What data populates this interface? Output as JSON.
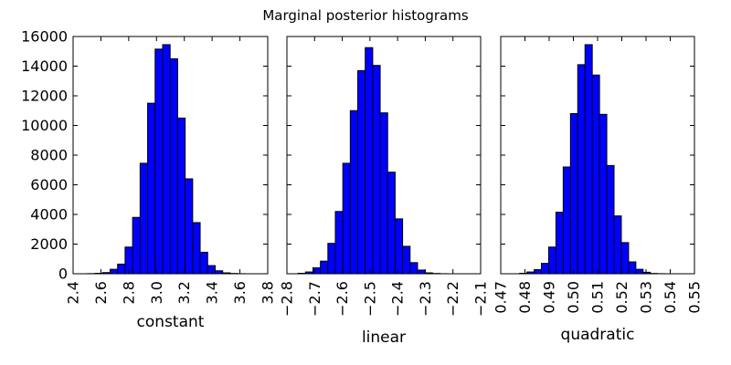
{
  "title": "Marginal posterior histograms",
  "colors": {
    "bar": "#0000ff",
    "edge": "#000000"
  },
  "chart_data": [
    {
      "type": "bar",
      "xlabel": "constant",
      "ylabel": "",
      "xlim": [
        2.4,
        3.8
      ],
      "ylim": [
        0,
        16000
      ],
      "xticks": [
        "2.4",
        "2.6",
        "2.8",
        "3.0",
        "3.2",
        "3.4",
        "3.6",
        "3.8"
      ],
      "yticks": [
        "0",
        "2000",
        "4000",
        "6000",
        "8000",
        "10000",
        "12000",
        "14000",
        "16000"
      ],
      "bin_edges": [
        2.504,
        2.558,
        2.612,
        2.666,
        2.72,
        2.774,
        2.828,
        2.882,
        2.936,
        2.99,
        3.044,
        3.098,
        3.152,
        3.206,
        3.26,
        3.314,
        3.368,
        3.422,
        3.476,
        3.53,
        3.584,
        3.638
      ],
      "values": [
        10,
        30,
        80,
        300,
        650,
        1800,
        3800,
        7450,
        11500,
        15150,
        15450,
        14500,
        10500,
        6400,
        3450,
        1450,
        550,
        200,
        60,
        20,
        5
      ],
      "grid": false
    },
    {
      "type": "bar",
      "xlabel": "linear",
      "ylabel": "",
      "xlim": [
        -2.8,
        -2.1
      ],
      "ylim": [
        0,
        16000
      ],
      "xticks": [
        "−2.8",
        "−2.7",
        "−2.6",
        "−2.5",
        "−2.4",
        "−2.3",
        "−2.2",
        "−2.1"
      ],
      "yticks": [],
      "bin_edges": [
        -2.76,
        -2.733,
        -2.706,
        -2.679,
        -2.652,
        -2.625,
        -2.598,
        -2.571,
        -2.544,
        -2.517,
        -2.49,
        -2.463,
        -2.436,
        -2.409,
        -2.382,
        -2.355,
        -2.328,
        -2.301,
        -2.274,
        -2.247,
        -2.22
      ],
      "values": [
        30,
        120,
        400,
        850,
        2050,
        4200,
        7450,
        11000,
        13700,
        15250,
        14050,
        10850,
        6850,
        3700,
        1850,
        750,
        250,
        60,
        20,
        5
      ],
      "grid": false
    },
    {
      "type": "bar",
      "xlabel": "quadratic",
      "ylabel": "",
      "xlim": [
        0.47,
        0.55
      ],
      "ylim": [
        0,
        16000
      ],
      "xticks": [
        "0.47",
        "0.48",
        "0.49",
        "0.50",
        "0.51",
        "0.52",
        "0.53",
        "0.54",
        "0.55"
      ],
      "yticks": [],
      "bin_edges": [
        0.4778,
        0.4808,
        0.4838,
        0.4868,
        0.4898,
        0.4928,
        0.4958,
        0.4988,
        0.5018,
        0.5048,
        0.5078,
        0.5108,
        0.5138,
        0.5168,
        0.5198,
        0.5228,
        0.5258,
        0.5288,
        0.5318,
        0.5348,
        0.5378
      ],
      "values": [
        30,
        120,
        280,
        700,
        1800,
        4150,
        7200,
        10800,
        14100,
        15450,
        13400,
        10750,
        7300,
        3900,
        2100,
        800,
        300,
        100,
        20,
        5
      ],
      "grid": false
    }
  ]
}
